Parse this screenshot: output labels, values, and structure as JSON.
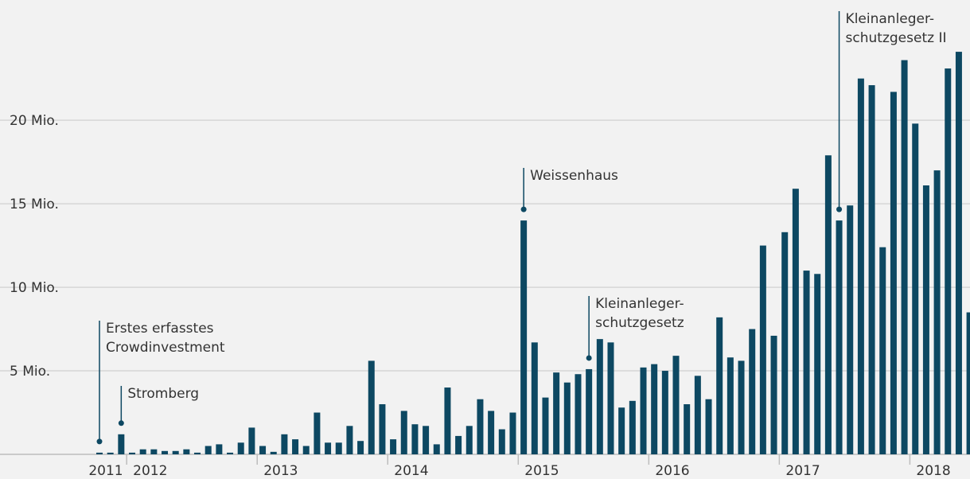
{
  "chart_data": {
    "type": "bar",
    "categories": [
      null,
      null,
      null,
      null,
      null,
      null,
      null,
      null,
      null,
      null,
      null,
      null,
      null,
      null,
      null,
      null,
      null,
      null,
      null,
      null,
      null,
      null,
      null,
      null,
      null,
      null,
      null,
      null,
      null,
      null,
      null,
      null,
      null,
      null,
      null,
      null,
      null,
      null,
      null,
      null,
      null,
      null,
      null,
      null,
      null,
      null,
      null,
      null,
      null,
      null,
      null,
      null,
      null,
      null,
      null,
      null,
      null,
      null,
      null,
      null,
      null,
      null,
      null,
      null,
      null,
      null,
      null,
      null,
      null,
      null,
      null,
      null,
      null,
      null,
      null,
      null,
      null,
      null,
      null,
      null,
      null
    ],
    "values": [
      0.1,
      0.1,
      1.2,
      0.1,
      0.3,
      0.3,
      0.2,
      0.2,
      0.3,
      0.1,
      0.5,
      0.6,
      0.1,
      0.7,
      1.6,
      0.5,
      0.15,
      1.2,
      0.9,
      0.5,
      2.5,
      0.7,
      0.7,
      1.7,
      0.8,
      5.6,
      3.0,
      0.9,
      2.6,
      1.8,
      1.7,
      0.6,
      4.0,
      1.1,
      1.7,
      3.3,
      2.6,
      1.5,
      2.5,
      14.0,
      6.7,
      3.4,
      4.9,
      4.3,
      4.8,
      5.1,
      6.9,
      6.7,
      2.8,
      3.2,
      5.2,
      5.4,
      5.0,
      5.9,
      3.0,
      4.7,
      3.3,
      8.2,
      5.8,
      5.6,
      7.5,
      12.5,
      7.1,
      13.3,
      15.9,
      11.0,
      10.8,
      17.9,
      14.0,
      14.9,
      22.5,
      22.1,
      12.4,
      21.7,
      23.6,
      19.8,
      16.1,
      17.0,
      23.1,
      24.1,
      8.5
    ],
    "color": "#0d4862",
    "ylim": [
      0,
      27.2
    ],
    "yticks": [
      {
        "value": 5,
        "label": "5 Mio."
      },
      {
        "value": 10,
        "label": "10 Mio."
      },
      {
        "value": 15,
        "label": "15 Mio."
      },
      {
        "value": 20,
        "label": "20 Mio."
      }
    ],
    "grid": true,
    "year_labels": [
      "2011",
      "2012",
      "2013",
      "2014",
      "2015",
      "2016",
      "2017",
      "2018"
    ],
    "annotations": [
      {
        "lines": [
          "Erstes erfasstes",
          "Crowdinvestment"
        ],
        "index": 0
      },
      {
        "lines": [
          "Stromberg"
        ],
        "index": 2
      },
      {
        "lines": [
          "Weissenhaus"
        ],
        "index": 39
      },
      {
        "lines": [
          "Kleinanleger-",
          "schutzgesetz"
        ],
        "index": 45
      },
      {
        "lines": [
          "Kleinanleger-",
          "schutzgesetz II"
        ],
        "index": 68
      }
    ]
  }
}
